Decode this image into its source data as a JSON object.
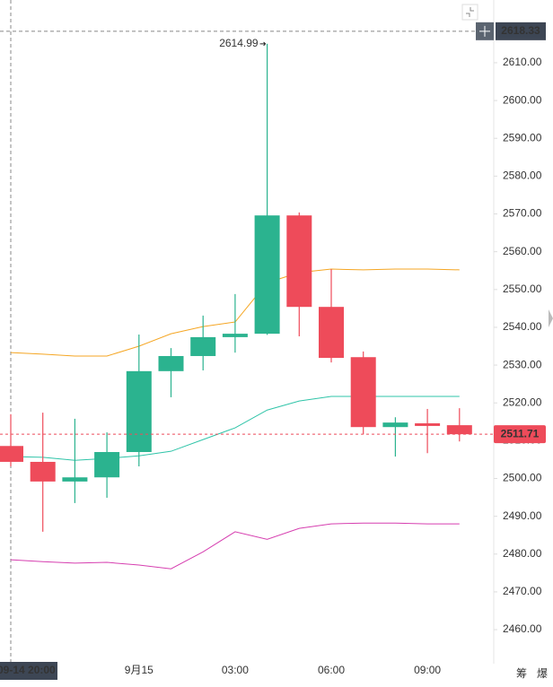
{
  "chart_data": {
    "type": "candlestick",
    "categories": [
      "09-14 20:00",
      null,
      null,
      null,
      "9月15",
      null,
      null,
      "03:00",
      null,
      null,
      "06:00",
      null,
      null,
      "09:00",
      null
    ],
    "open": [
      2508.6,
      2504.4,
      2499.2,
      2500.3,
      2507.0,
      2528.4,
      2532.4,
      2537.4,
      2538.3,
      2569.6,
      2545.4,
      2532.1,
      2513.6,
      2514.6,
      2514.1
    ],
    "high": [
      2517.0,
      2517.4,
      2515.8,
      2512.2,
      2538.1,
      2534.5,
      2543.1,
      2548.8,
      2614.99,
      2570.4,
      2555.4,
      2533.6,
      2516.2,
      2518.4,
      2518.6
    ],
    "low": [
      2503.2,
      2485.9,
      2493.5,
      2494.9,
      2503.2,
      2521.5,
      2528.6,
      2533.3,
      2538.0,
      2537.6,
      2530.7,
      2511.7,
      2505.8,
      2506.7,
      2509.8
    ],
    "close": [
      2504.4,
      2499.2,
      2500.3,
      2507.0,
      2528.4,
      2532.4,
      2537.4,
      2538.3,
      2569.6,
      2545.4,
      2531.9,
      2513.6,
      2514.8,
      2513.9,
      2511.71
    ],
    "up_color": "#2bb38f",
    "down_color": "#ee4b5a",
    "lines": [
      {
        "color": "#f5a623",
        "values": [
          2533.3,
          2532.9,
          2532.4,
          2532.4,
          2535.0,
          2538.3,
          2540.2,
          2541.4,
          2551.8,
          2554.5,
          2555.4,
          2555.2,
          2555.4,
          2555.4,
          2555.2
        ]
      },
      {
        "color": "#2fc4a8",
        "values": [
          2505.8,
          2505.6,
          2504.8,
          2505.3,
          2506.0,
          2507.2,
          2510.3,
          2513.4,
          2518.1,
          2520.5,
          2521.7,
          2521.7,
          2521.7,
          2521.7,
          2521.7
        ]
      },
      {
        "color": "#d63fb0",
        "values": [
          2478.5,
          2478.0,
          2477.6,
          2477.8,
          2477.1,
          2476.1,
          2480.6,
          2485.9,
          2483.9,
          2486.8,
          2488.0,
          2488.2,
          2488.2,
          2488.0,
          2488.0
        ]
      }
    ],
    "ylim": [
      2451,
      2626.6
    ],
    "yticks": [
      {
        "value": 2460,
        "label": "2460.00"
      },
      {
        "value": 2470,
        "label": "2470.00"
      },
      {
        "value": 2480,
        "label": "2480.00"
      },
      {
        "value": 2490,
        "label": "2490.00"
      },
      {
        "value": 2500,
        "label": "2500.00"
      },
      {
        "value": 2510,
        "label": "2510.00"
      },
      {
        "value": 2520,
        "label": "2520.00"
      },
      {
        "value": 2530,
        "label": "2530.00"
      },
      {
        "value": 2540,
        "label": "2540.00"
      },
      {
        "value": 2550,
        "label": "2550.00"
      },
      {
        "value": 2560,
        "label": "2560.00"
      },
      {
        "value": 2570,
        "label": "2570.00"
      },
      {
        "value": 2580,
        "label": "2580.00"
      },
      {
        "value": 2590,
        "label": "2590.00"
      },
      {
        "value": 2600,
        "label": "2600.00"
      },
      {
        "value": 2610,
        "label": "2610.00"
      }
    ],
    "crosshair_value": 2618.33,
    "footer_buttons": [
      "筹",
      "爆"
    ]
  }
}
